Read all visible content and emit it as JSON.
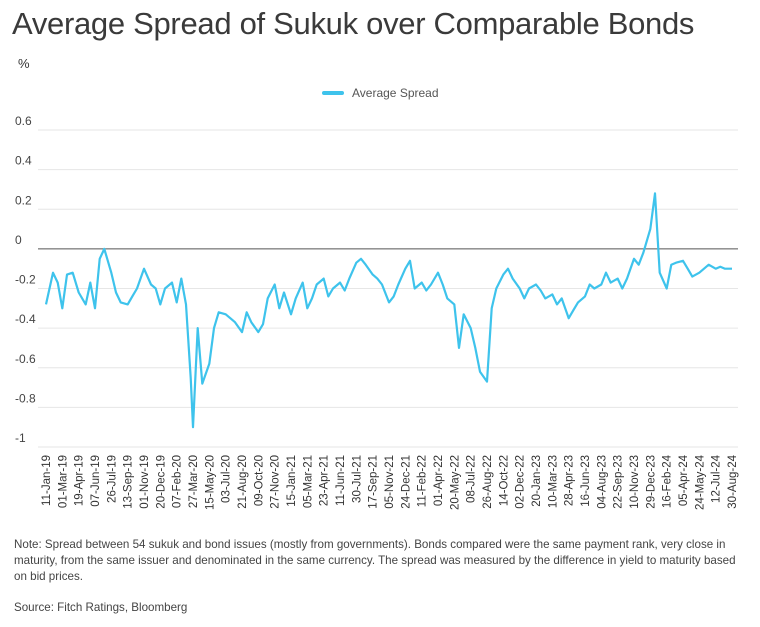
{
  "title": "Average Spread of Sukuk over Comparable Bonds",
  "unit": "%",
  "legend_label": "Average Spread",
  "note": "Note:  Spread between 54 sukuk and bond issues (mostly from governments). Bonds compared were the same payment rank, very close in maturity, from the same issuer and denominated in the same currency. The spread was measured by the difference in yield to maturity based on bid prices.",
  "source": "Source: Fitch Ratings, Bloomberg",
  "colors": {
    "line": "#3ec3ec",
    "zero_line": "#555555",
    "grid": "#e6e6e6"
  },
  "chart_data": {
    "type": "line",
    "title": "Average Spread of Sukuk over Comparable Bonds",
    "ylabel": "%",
    "ylim": [
      -1,
      0.6
    ],
    "yticks": [
      0.6,
      0.4,
      0.2,
      0,
      -0.2,
      -0.4,
      -0.6,
      -0.8,
      -1
    ],
    "ytick_labels": [
      "0.6",
      "0.4",
      "0.2",
      "0",
      "-0.2",
      "-0.4",
      "-0.6",
      "-0.8",
      "-1"
    ],
    "xtick_labels": [
      "11-Jan-19",
      "01-Mar-19",
      "19-Apr-19",
      "07-Jun-19",
      "26-Jul-19",
      "13-Sep-19",
      "01-Nov-19",
      "20-Dec-19",
      "07-Feb-20",
      "27-Mar-20",
      "15-May-20",
      "03-Jul-20",
      "21-Aug-20",
      "09-Oct-20",
      "27-Nov-20",
      "15-Jan-21",
      "05-Mar-21",
      "23-Apr-21",
      "11-Jun-21",
      "30-Jul-21",
      "17-Sep-21",
      "05-Nov-21",
      "24-Dec-21",
      "11-Feb-22",
      "01-Apr-22",
      "20-May-22",
      "08-Jul-22",
      "26-Aug-22",
      "14-Oct-22",
      "02-Dec-22",
      "20-Jan-23",
      "10-Mar-23",
      "28-Apr-23",
      "16-Jun-23",
      "04-Aug-23",
      "22-Sep-23",
      "10-Nov-23",
      "29-Dec-23",
      "16-Feb-24",
      "05-Apr-24",
      "24-May-24",
      "12-Jul-24",
      "30-Aug-24"
    ],
    "grid": true,
    "legend_position": "top-center",
    "series": [
      {
        "name": "Average Spread",
        "x": [
          "11-Jan-19",
          "01-Feb-19",
          "15-Feb-19",
          "01-Mar-19",
          "15-Mar-19",
          "01-Apr-19",
          "19-Apr-19",
          "10-May-19",
          "24-May-19",
          "07-Jun-19",
          "21-Jun-19",
          "05-Jul-19",
          "26-Jul-19",
          "09-Aug-19",
          "23-Aug-19",
          "13-Sep-19",
          "27-Sep-19",
          "11-Oct-19",
          "01-Nov-19",
          "22-Nov-19",
          "06-Dec-19",
          "20-Dec-19",
          "03-Jan-20",
          "24-Jan-20",
          "07-Feb-20",
          "21-Feb-20",
          "06-Mar-20",
          "20-Mar-20",
          "27-Mar-20",
          "10-Apr-20",
          "24-Apr-20",
          "15-May-20",
          "29-May-20",
          "12-Jun-20",
          "03-Jul-20",
          "17-Jul-20",
          "31-Jul-20",
          "21-Aug-20",
          "04-Sep-20",
          "18-Sep-20",
          "09-Oct-20",
          "23-Oct-20",
          "06-Nov-20",
          "27-Nov-20",
          "11-Dec-20",
          "25-Dec-20",
          "15-Jan-21",
          "29-Jan-21",
          "19-Feb-21",
          "05-Mar-21",
          "19-Mar-21",
          "02-Apr-21",
          "23-Apr-21",
          "07-May-21",
          "21-May-21",
          "11-Jun-21",
          "25-Jun-21",
          "09-Jul-21",
          "30-Jul-21",
          "13-Aug-21",
          "27-Aug-21",
          "17-Sep-21",
          "01-Oct-21",
          "15-Oct-21",
          "05-Nov-21",
          "19-Nov-21",
          "03-Dec-21",
          "24-Dec-21",
          "07-Jan-22",
          "21-Jan-22",
          "11-Feb-22",
          "25-Feb-22",
          "11-Mar-22",
          "01-Apr-22",
          "15-Apr-22",
          "29-Apr-22",
          "20-May-22",
          "03-Jun-22",
          "17-Jun-22",
          "08-Jul-22",
          "22-Jul-22",
          "05-Aug-22",
          "26-Aug-22",
          "09-Sep-22",
          "23-Sep-22",
          "14-Oct-22",
          "28-Oct-22",
          "11-Nov-22",
          "02-Dec-22",
          "16-Dec-22",
          "30-Dec-22",
          "20-Jan-23",
          "03-Feb-23",
          "17-Feb-23",
          "10-Mar-23",
          "24-Mar-23",
          "07-Apr-23",
          "28-Apr-23",
          "12-May-23",
          "26-May-23",
          "16-Jun-23",
          "30-Jun-23",
          "14-Jul-23",
          "04-Aug-23",
          "18-Aug-23",
          "01-Sep-23",
          "22-Sep-23",
          "06-Oct-23",
          "20-Oct-23",
          "10-Nov-23",
          "24-Nov-23",
          "08-Dec-23",
          "29-Dec-23",
          "12-Jan-24",
          "26-Jan-24",
          "16-Feb-24",
          "01-Mar-24",
          "15-Mar-24",
          "05-Apr-24",
          "19-Apr-24",
          "03-May-24",
          "24-May-24",
          "07-Jun-24",
          "21-Jun-24",
          "12-Jul-24",
          "26-Jul-24",
          "09-Aug-24",
          "30-Aug-24"
        ],
        "values": [
          -0.28,
          -0.12,
          -0.17,
          -0.3,
          -0.13,
          -0.12,
          -0.22,
          -0.28,
          -0.17,
          -0.3,
          -0.05,
          0.0,
          -0.12,
          -0.22,
          -0.27,
          -0.28,
          -0.24,
          -0.2,
          -0.1,
          -0.18,
          -0.2,
          -0.28,
          -0.2,
          -0.17,
          -0.27,
          -0.15,
          -0.28,
          -0.65,
          -0.9,
          -0.4,
          -0.68,
          -0.58,
          -0.4,
          -0.32,
          -0.33,
          -0.35,
          -0.37,
          -0.42,
          -0.32,
          -0.37,
          -0.42,
          -0.38,
          -0.25,
          -0.18,
          -0.3,
          -0.22,
          -0.33,
          -0.25,
          -0.17,
          -0.3,
          -0.25,
          -0.18,
          -0.15,
          -0.24,
          -0.2,
          -0.17,
          -0.21,
          -0.15,
          -0.07,
          -0.05,
          -0.08,
          -0.13,
          -0.15,
          -0.18,
          -0.27,
          -0.24,
          -0.18,
          -0.1,
          -0.06,
          -0.2,
          -0.17,
          -0.21,
          -0.18,
          -0.12,
          -0.18,
          -0.25,
          -0.28,
          -0.5,
          -0.33,
          -0.4,
          -0.5,
          -0.62,
          -0.67,
          -0.3,
          -0.2,
          -0.13,
          -0.1,
          -0.15,
          -0.2,
          -0.25,
          -0.2,
          -0.18,
          -0.21,
          -0.25,
          -0.23,
          -0.28,
          -0.25,
          -0.35,
          -0.31,
          -0.27,
          -0.24,
          -0.18,
          -0.2,
          -0.18,
          -0.12,
          -0.17,
          -0.15,
          -0.2,
          -0.15,
          -0.05,
          -0.08,
          -0.02,
          0.1,
          0.28,
          -0.12,
          -0.2,
          -0.08,
          -0.07,
          -0.06,
          -0.1,
          -0.14,
          -0.12,
          -0.1,
          -0.08,
          -0.1,
          -0.09,
          -0.1,
          -0.1
        ]
      }
    ]
  }
}
